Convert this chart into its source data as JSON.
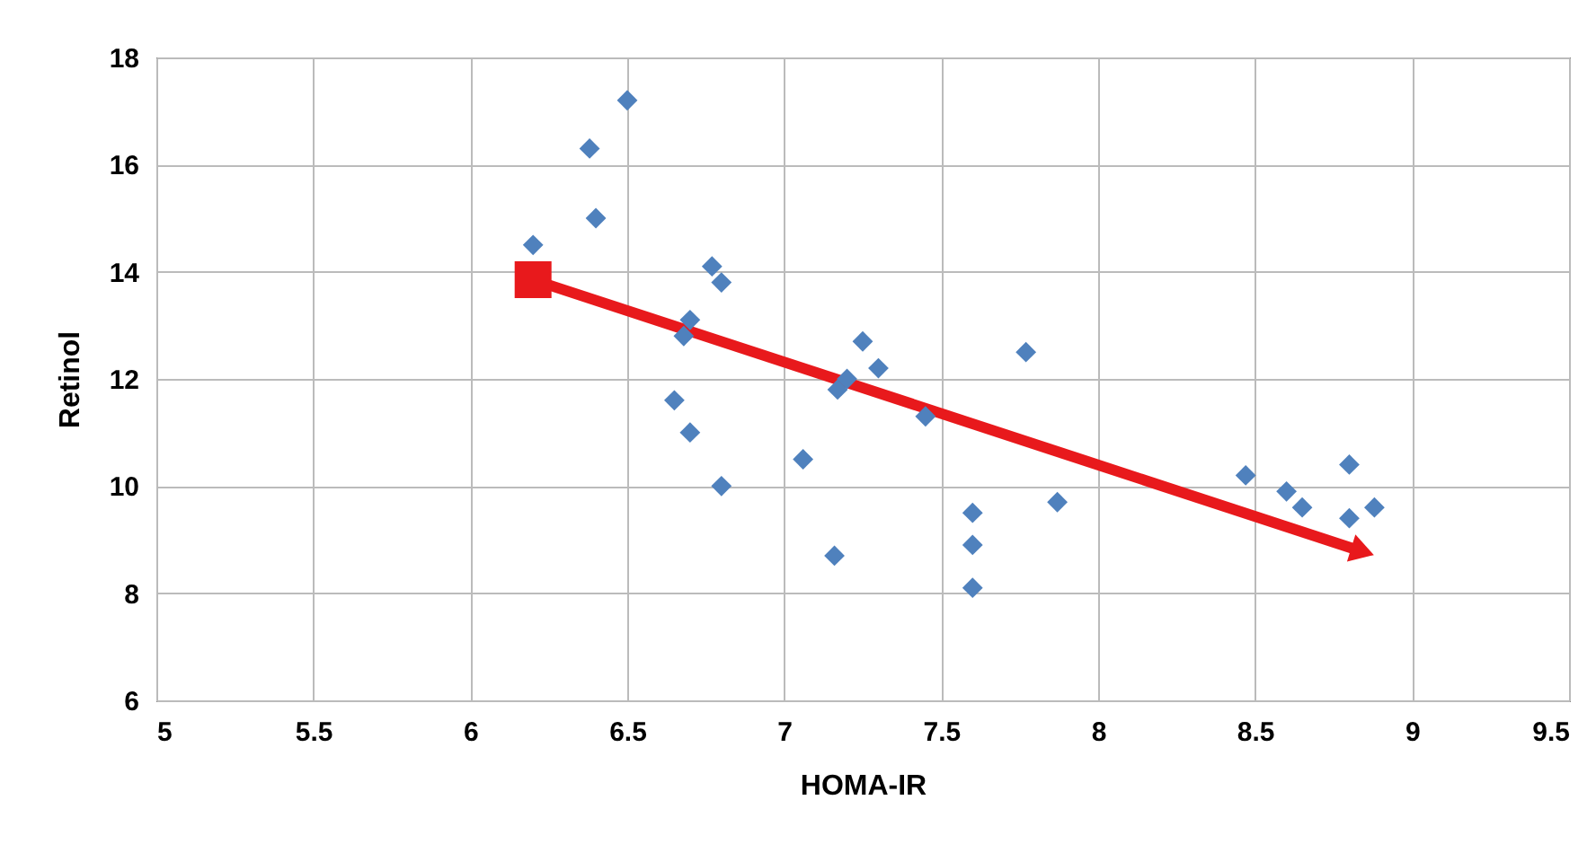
{
  "chart_data": {
    "type": "scatter",
    "xlabel": "HOMA-IR",
    "ylabel": "Retinol",
    "x": [
      6.2,
      6.38,
      6.5,
      6.4,
      6.7,
      6.68,
      6.77,
      6.8,
      6.65,
      6.7,
      6.8,
      7.06,
      7.16,
      7.25,
      7.3,
      7.2,
      7.17,
      7.45,
      7.6,
      7.6,
      7.6,
      7.77,
      7.87,
      8.47,
      8.6,
      8.65,
      8.8,
      8.8,
      8.88
    ],
    "series": [
      {
        "color": "#4f81bd",
        "marker": "diamond",
        "values": [
          14.5,
          16.3,
          17.2,
          15.0,
          13.1,
          12.8,
          14.1,
          13.8,
          11.6,
          11.0,
          10.0,
          10.5,
          8.7,
          12.7,
          12.2,
          12.0,
          11.8,
          11.3,
          9.5,
          8.9,
          8.1,
          12.5,
          9.7,
          10.2,
          9.9,
          9.6,
          10.4,
          9.4,
          9.6
        ]
      },
      {
        "type": "line",
        "color": "#e8191c",
        "marker": "square",
        "x": [
          6.2,
          8.83
        ],
        "values": [
          13.85,
          8.8
        ]
      }
    ],
    "xlim": [
      5,
      9.5
    ],
    "xticks": [
      5,
      5.5,
      6,
      6.5,
      7,
      7.5,
      8,
      8.5,
      9,
      9.5
    ],
    "ylim": [
      6,
      18
    ],
    "yticks": [
      6,
      8,
      10,
      12,
      14,
      16,
      18
    ],
    "grid": true
  }
}
